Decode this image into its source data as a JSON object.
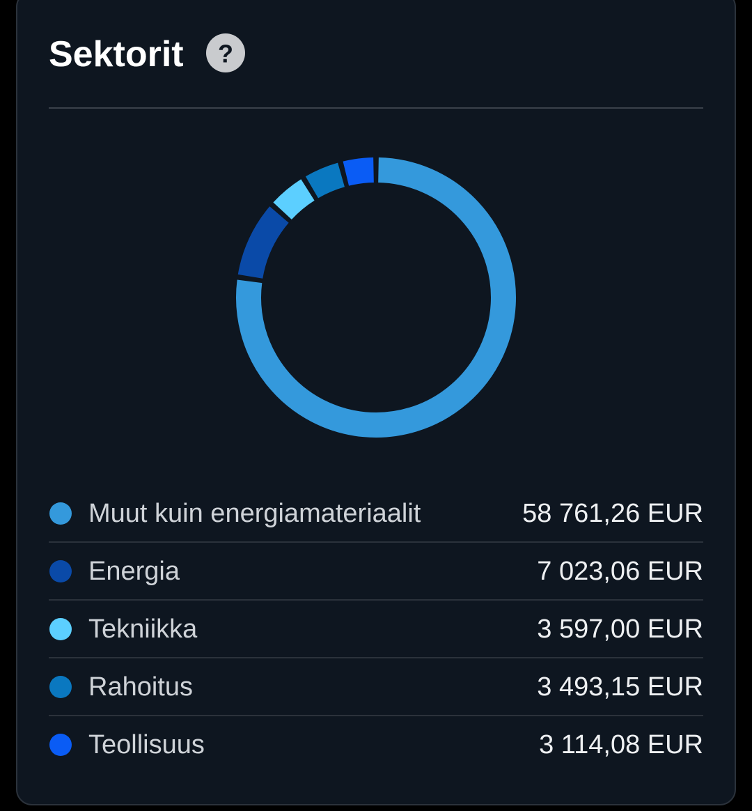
{
  "chart_data": {
    "type": "pie",
    "title": "Sektorit",
    "help_label": "?",
    "categories": [
      "Muut kuin energiamateriaalit",
      "Energia",
      "Tekniikka",
      "Rahoitus",
      "Teollisuus"
    ],
    "values": [
      58761.26,
      7023.06,
      3597.0,
      3493.15,
      3114.08
    ],
    "value_labels": [
      "58 761,26 EUR",
      "7 023,06 EUR",
      "3 597,00 EUR",
      "3 493,15 EUR",
      "3 114,08 EUR"
    ],
    "colors": [
      "#3499dc",
      "#0a4aa8",
      "#5ccfff",
      "#0a78c0",
      "#0a5cf5"
    ],
    "donut": true
  }
}
